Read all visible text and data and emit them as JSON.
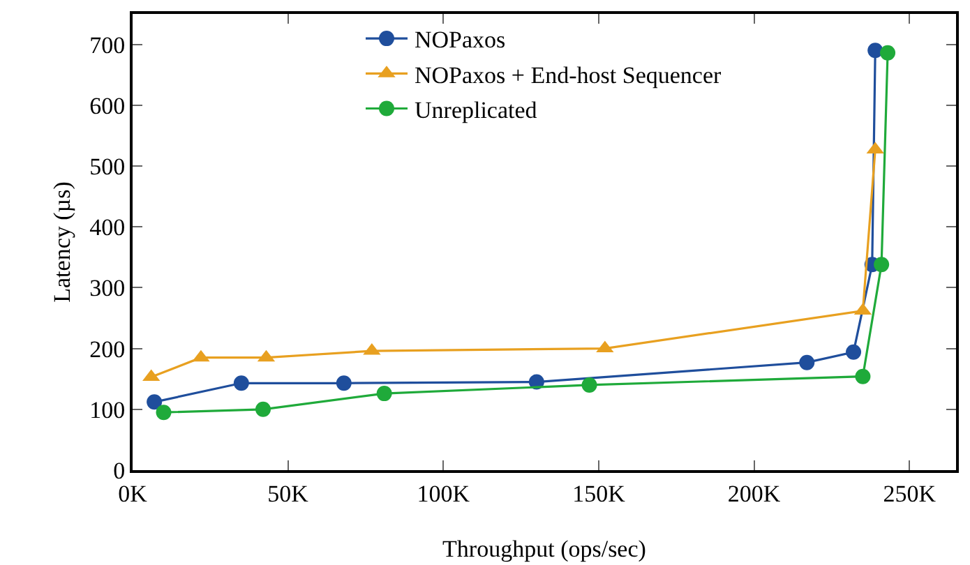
{
  "chart_data": {
    "type": "line",
    "xlabel": "Throughput (ops/sec)",
    "ylabel": "Latency (µs)",
    "xlim": [
      0,
      265000
    ],
    "ylim": [
      0,
      750
    ],
    "xticks": [
      {
        "value": 0,
        "label": "0K"
      },
      {
        "value": 50000,
        "label": "50K"
      },
      {
        "value": 100000,
        "label": "100K"
      },
      {
        "value": 150000,
        "label": "150K"
      },
      {
        "value": 200000,
        "label": "200K"
      },
      {
        "value": 250000,
        "label": "250K"
      }
    ],
    "yticks": [
      0,
      100,
      200,
      300,
      400,
      500,
      600,
      700
    ],
    "grid": false,
    "legend": "top",
    "line_style": "solid",
    "series": [
      {
        "name": "NOPaxos",
        "color": "#1f4e9c",
        "marker": "circle",
        "x": [
          7000,
          35000,
          68000,
          130000,
          217000,
          232000,
          238000,
          239000
        ],
        "values": [
          112,
          143,
          143,
          145,
          177,
          194,
          338,
          690
        ]
      },
      {
        "name": "NOPaxos + End-host Sequencer",
        "color": "#e8a020",
        "marker": "triangle",
        "x": [
          6000,
          22000,
          43000,
          77000,
          152000,
          235000,
          239000
        ],
        "values": [
          153,
          185,
          185,
          196,
          200,
          262,
          527
        ]
      },
      {
        "name": "Unreplicated",
        "color": "#1faa3a",
        "marker": "circle",
        "x": [
          10000,
          42000,
          81000,
          147000,
          235000,
          241000,
          243000
        ],
        "values": [
          95,
          100,
          126,
          140,
          154,
          338,
          686
        ]
      }
    ]
  }
}
